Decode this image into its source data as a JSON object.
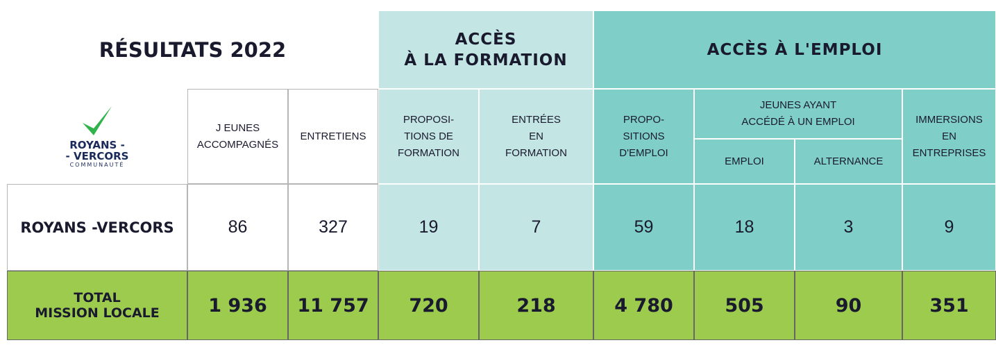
{
  "header": {
    "title": "RÉSULTATS 2022",
    "groups": [
      "ACCÈS\nÀ LA FORMATION",
      "ACCÈS À L'EMPLOI"
    ]
  },
  "logo": {
    "line1": "ROYANS -",
    "line2": "- VERCORS",
    "line3": "COMMUNAUTÉ"
  },
  "columns": [
    "J EUNES\nACCOMPAGNÉS",
    "ENTRETIENS",
    "PROPOSI-\nTIONS DE\nFORMATION",
    "ENTRÉES\nEN\nFORMATION",
    "PROPO-\nSITIONS\nD'EMPLOI",
    "JEUNES AYANT\nACCÉDÉ À UN EMPLOI",
    "EMPLOI",
    "ALTERNANCE",
    "IMMERSIONS\nEN\nENTREPRISES"
  ],
  "table": {
    "rows": [
      [
        "ROYANS -VERCORS",
        "86",
        "327",
        "19",
        "7",
        "59",
        "18",
        "3",
        "9"
      ],
      [
        "TOTAL\nMISSION LOCALE",
        "1 936",
        "11 757",
        "720",
        "218",
        "4 780",
        "505",
        "90",
        "351"
      ]
    ]
  }
}
